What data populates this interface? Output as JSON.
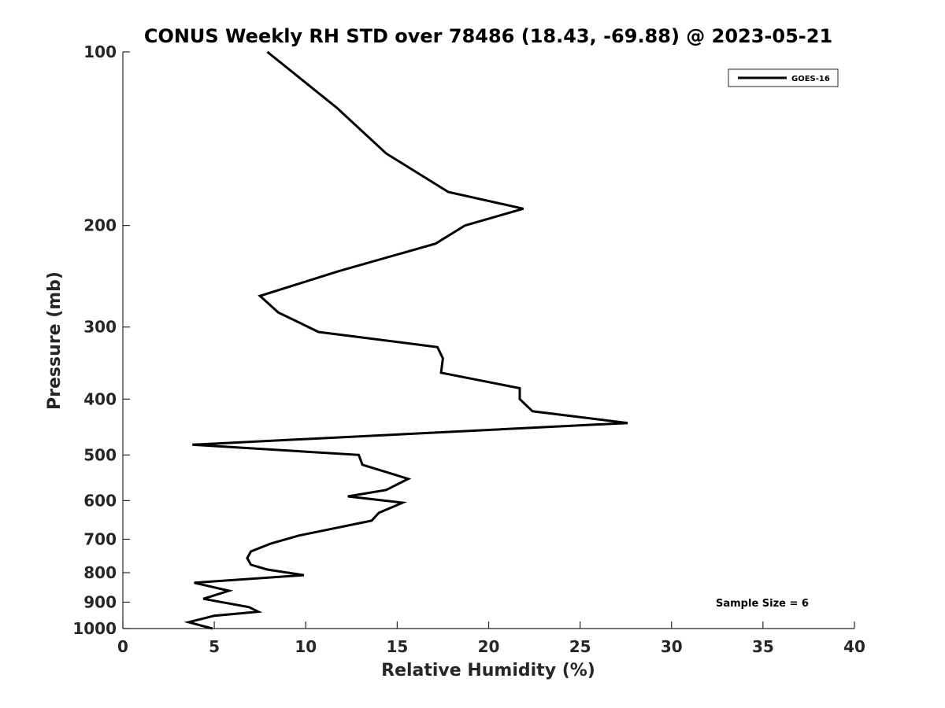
{
  "chart_data": {
    "type": "line",
    "title": "CONUS Weekly RH STD over 78486 (18.43, -69.88) @ 2023-05-21",
    "xlabel": "Relative Humidity (%)",
    "ylabel": "Pressure (mb)",
    "xlim": [
      0,
      40
    ],
    "ylim": [
      100,
      1000
    ],
    "y_scale": "log",
    "y_reversed": true,
    "xticks": [
      0,
      5,
      10,
      15,
      20,
      25,
      30,
      35,
      40
    ],
    "xtick_labels": [
      "0",
      "5",
      "10",
      "15",
      "20",
      "25",
      "30",
      "35",
      "40"
    ],
    "yticks": [
      100,
      200,
      300,
      400,
      500,
      600,
      700,
      800,
      900,
      1000
    ],
    "ytick_labels": [
      "100",
      "200",
      "300",
      "400",
      "500",
      "600",
      "700",
      "800",
      "900",
      "1000"
    ],
    "legend_position": "top-right",
    "annotation": "Sample Size = 6",
    "series": [
      {
        "name": "GOES-16",
        "color": "#000000",
        "points": [
          [
            7.9,
            100
          ],
          [
            11.7,
            125
          ],
          [
            14.4,
            150
          ],
          [
            17.8,
            175
          ],
          [
            21.9,
            187
          ],
          [
            18.7,
            200
          ],
          [
            17.1,
            215
          ],
          [
            11.8,
            240
          ],
          [
            7.5,
            265
          ],
          [
            8.5,
            283
          ],
          [
            10.7,
            306
          ],
          [
            17.2,
            325
          ],
          [
            17.5,
            340
          ],
          [
            17.4,
            360
          ],
          [
            21.7,
            383
          ],
          [
            21.7,
            400
          ],
          [
            22.4,
            420
          ],
          [
            27.6,
            440
          ],
          [
            3.8,
            480
          ],
          [
            12.9,
            500
          ],
          [
            13.1,
            520
          ],
          [
            15.6,
            550
          ],
          [
            14.4,
            575
          ],
          [
            12.3,
            590
          ],
          [
            15.3,
            605
          ],
          [
            14.0,
            630
          ],
          [
            13.6,
            650
          ],
          [
            9.6,
            690
          ],
          [
            8.1,
            712
          ],
          [
            7.0,
            735
          ],
          [
            6.8,
            755
          ],
          [
            7.0,
            775
          ],
          [
            7.9,
            790
          ],
          [
            9.9,
            808
          ],
          [
            3.9,
            833
          ],
          [
            5.8,
            860
          ],
          [
            4.4,
            888
          ],
          [
            6.9,
            918
          ],
          [
            7.4,
            935
          ],
          [
            5.0,
            950
          ],
          [
            3.6,
            975
          ],
          [
            4.9,
            1000
          ]
        ]
      }
    ]
  }
}
